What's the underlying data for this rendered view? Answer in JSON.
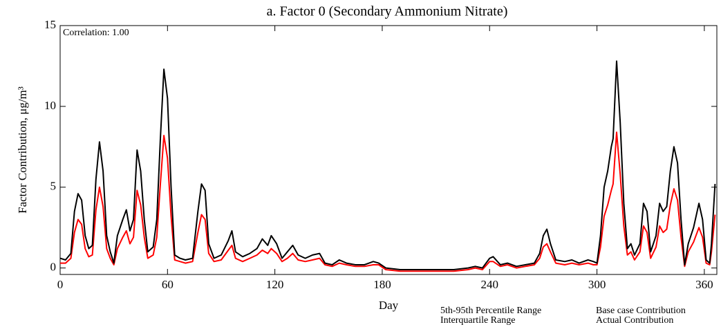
{
  "chart_data": {
    "type": "line",
    "title": "a.  Factor 0 (Secondary Ammonium Nitrate)",
    "x_label": "Day",
    "y_label": "Factor Contribution,  μg/m³",
    "annotation": "Correlation: 1.00",
    "xlim": [
      0,
      367
    ],
    "ylim": [
      -0.4,
      15
    ],
    "xticks": [
      0,
      60,
      120,
      180,
      240,
      300,
      360
    ],
    "yticks": [
      0,
      5,
      10,
      15
    ],
    "band_legend": [
      {
        "name": "5th-95th Percentile Range",
        "color": "#7fb0e0"
      },
      {
        "name": "Interquartile Range",
        "color": "#2f6fd6"
      }
    ],
    "x": [
      0,
      3,
      6,
      8,
      10,
      12,
      14,
      16,
      18,
      20,
      22,
      24,
      26,
      28,
      30,
      32,
      35,
      37,
      39,
      41,
      43,
      45,
      47,
      49,
      52,
      54,
      56,
      58,
      60,
      62,
      64,
      67,
      70,
      74,
      77,
      79,
      81,
      83,
      86,
      90,
      94,
      96,
      98,
      102,
      106,
      110,
      113,
      116,
      118,
      121,
      124,
      127,
      130,
      133,
      137,
      141,
      145,
      148,
      152,
      156,
      160,
      165,
      170,
      175,
      178,
      182,
      190,
      200,
      210,
      220,
      228,
      232,
      236,
      240,
      242,
      246,
      250,
      255,
      260,
      265,
      268,
      270,
      272,
      274,
      277,
      282,
      286,
      290,
      295,
      298,
      300,
      302,
      304,
      306,
      308,
      309,
      311,
      313,
      315,
      317,
      319,
      321,
      324,
      326,
      328,
      330,
      333,
      335,
      337,
      339,
      341,
      343,
      345,
      347,
      349,
      351,
      354,
      357,
      359,
      361,
      363,
      364,
      366
    ],
    "series": [
      {
        "name": "Base case Contribution",
        "color": "#000000",
        "values": [
          0.6,
          0.5,
          0.9,
          3.5,
          4.6,
          4.2,
          2.0,
          1.2,
          1.4,
          5.5,
          7.8,
          6.0,
          2.0,
          1.0,
          0.3,
          2.0,
          3.0,
          3.6,
          2.3,
          3.0,
          7.3,
          6.0,
          3.0,
          1.0,
          1.3,
          3.0,
          8.0,
          12.3,
          10.5,
          5.0,
          0.8,
          0.6,
          0.5,
          0.6,
          3.5,
          5.2,
          4.8,
          1.5,
          0.6,
          0.8,
          1.7,
          2.3,
          1.0,
          0.7,
          0.9,
          1.2,
          1.8,
          1.4,
          2.0,
          1.5,
          0.6,
          1.0,
          1.4,
          0.8,
          0.6,
          0.8,
          0.9,
          0.3,
          0.2,
          0.5,
          0.3,
          0.2,
          0.2,
          0.4,
          0.3,
          0.0,
          -0.1,
          -0.1,
          -0.1,
          -0.1,
          0.0,
          0.1,
          0.0,
          0.6,
          0.7,
          0.2,
          0.3,
          0.1,
          0.2,
          0.3,
          0.9,
          2.0,
          2.4,
          1.5,
          0.5,
          0.4,
          0.5,
          0.3,
          0.5,
          0.4,
          0.3,
          2.0,
          5.0,
          6.0,
          7.5,
          8.0,
          12.8,
          9.0,
          4.0,
          1.2,
          1.5,
          0.8,
          1.5,
          4.0,
          3.5,
          1.0,
          2.0,
          4.0,
          3.5,
          3.8,
          6.0,
          7.5,
          6.5,
          3.0,
          0.2,
          1.5,
          2.5,
          4.0,
          3.0,
          0.5,
          0.3,
          1.5,
          5.2
        ]
      },
      {
        "name": "Actual Contribution",
        "color": "#ff0000",
        "values": [
          0.3,
          0.3,
          0.6,
          2.2,
          3.0,
          2.7,
          1.2,
          0.7,
          0.8,
          3.6,
          5.0,
          3.8,
          1.2,
          0.6,
          0.2,
          1.2,
          1.9,
          2.3,
          1.5,
          1.9,
          4.8,
          3.9,
          1.9,
          0.6,
          0.8,
          1.9,
          5.2,
          8.2,
          6.8,
          3.2,
          0.5,
          0.4,
          0.3,
          0.4,
          2.2,
          3.3,
          3.0,
          0.9,
          0.4,
          0.5,
          1.1,
          1.4,
          0.6,
          0.4,
          0.6,
          0.8,
          1.1,
          0.9,
          1.2,
          0.9,
          0.4,
          0.6,
          0.9,
          0.5,
          0.4,
          0.5,
          0.6,
          0.2,
          0.1,
          0.3,
          0.2,
          0.1,
          0.1,
          0.2,
          0.2,
          -0.1,
          -0.2,
          -0.2,
          -0.2,
          -0.2,
          -0.1,
          0.0,
          -0.1,
          0.4,
          0.4,
          0.1,
          0.2,
          0.0,
          0.1,
          0.2,
          0.6,
          1.3,
          1.5,
          1.0,
          0.3,
          0.2,
          0.3,
          0.2,
          0.3,
          0.2,
          0.2,
          1.3,
          3.2,
          3.9,
          4.8,
          5.2,
          8.4,
          5.8,
          2.6,
          0.8,
          1.0,
          0.5,
          1.0,
          2.6,
          2.2,
          0.6,
          1.3,
          2.6,
          2.2,
          2.4,
          3.9,
          4.9,
          4.2,
          1.9,
          0.1,
          1.0,
          1.6,
          2.5,
          1.9,
          0.3,
          0.2,
          1.0,
          3.3
        ]
      }
    ]
  }
}
